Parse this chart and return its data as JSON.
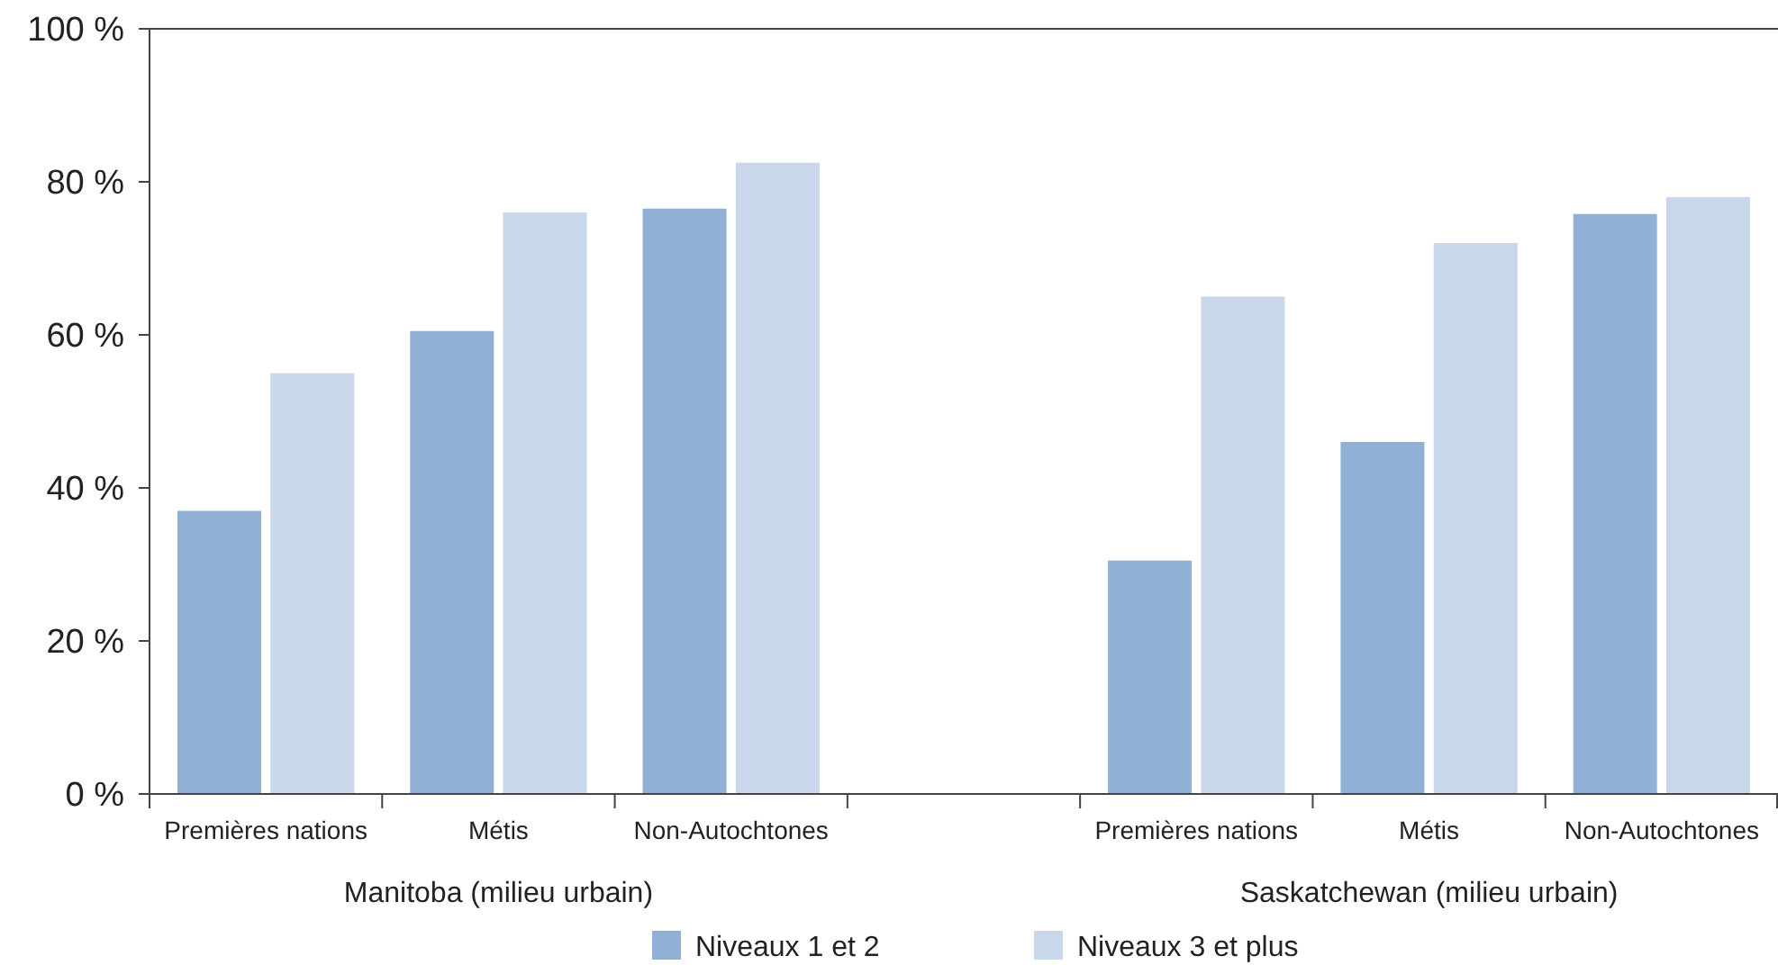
{
  "chart_data": {
    "type": "bar",
    "categories": [
      "Premières nations",
      "Métis",
      "Non-Autochtones",
      null,
      "Premières nations",
      "Métis",
      "Non-Autochtones"
    ],
    "series": [
      {
        "name": "Niveaux 1 et 2",
        "color": "#91b0d6",
        "values": [
          37,
          60.5,
          76.5,
          null,
          30.5,
          46,
          75.8
        ]
      },
      {
        "name": "Niveaux 3 et plus",
        "color": "#c8d7ea",
        "values": [
          55,
          76,
          82.5,
          null,
          65,
          72,
          78
        ]
      }
    ],
    "ylim": [
      0,
      100
    ],
    "yticks": [
      {
        "value": 0,
        "label": "0 %"
      },
      {
        "value": 20,
        "label": "20 %"
      },
      {
        "value": 40,
        "label": "40 %"
      },
      {
        "value": 60,
        "label": "60 %"
      },
      {
        "value": 80,
        "label": "80 %"
      },
      {
        "value": 100,
        "label": "100 %"
      }
    ],
    "annotations": [
      "Manitoba (milieu urbain)",
      "Saskatchewan (milieu urbain)"
    ],
    "grid": false,
    "legend": "bottom"
  }
}
